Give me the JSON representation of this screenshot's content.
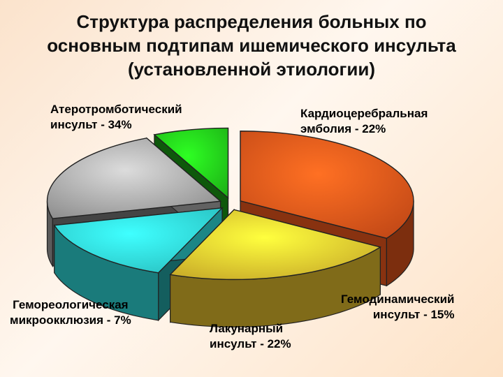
{
  "title_lines": [
    "Структура распределения больных по",
    "основным подтипам ишемического инсульта",
    "(установленной этиологии)"
  ],
  "chart_data": {
    "type": "pie",
    "style": "3d-exploded",
    "title": "Структура распределения больных по основным подтипам ишемического инсульта (установленной этиологии)",
    "legend": "none",
    "slices": [
      {
        "key": "atherothrombotic",
        "value": 34,
        "color": "#e2531a",
        "label_lines": [
          "Атеротромботический",
          "инсульт - 34%"
        ]
      },
      {
        "key": "cardioembolic",
        "value": 22,
        "color": "#e8c22e",
        "label_lines": [
          "Кардиоцеребральная",
          "эмболия - 22%"
        ]
      },
      {
        "key": "hemodynamic",
        "value": 15,
        "color": "#2fe0e0",
        "label_lines": [
          "Гемодинамический",
          "инсульт - 15%"
        ]
      },
      {
        "key": "lacunar",
        "value": 22,
        "color": "#a3a3a3",
        "label_lines": [
          "Лакунарный",
          "инсульт - 22%"
        ]
      },
      {
        "key": "hemorheological",
        "value": 7,
        "color": "#22d11a",
        "label_lines": [
          "Гемореологическая",
          "микроокклюзия - 7%"
        ]
      }
    ]
  }
}
